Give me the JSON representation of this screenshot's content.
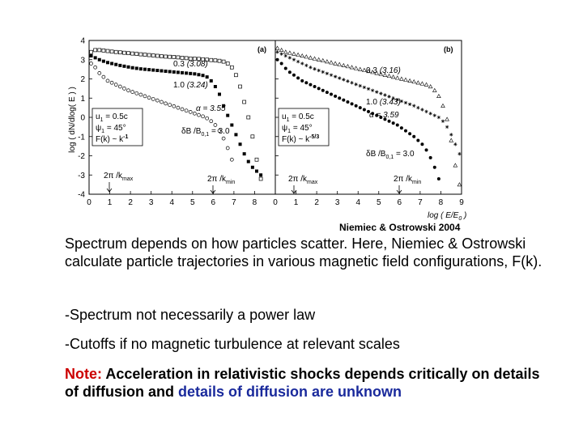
{
  "chart_data": {
    "type": "scatter",
    "ylabel": "log ( dN/dlog( E ) )",
    "xlabel": "log ( E/E",
    "xlabel_sub": "0",
    "xlabel_close": " )",
    "panels": [
      {
        "label": "(a)",
        "xlim": [
          0,
          9
        ],
        "ylim": [
          -4,
          4
        ],
        "xticks": [
          "0",
          "1",
          "2",
          "3",
          "4",
          "5",
          "6",
          "7",
          "8"
        ],
        "yticks": [
          "4",
          "3",
          "2",
          "1",
          "0",
          "-1",
          "-2",
          "-3",
          "-4"
        ],
        "params": {
          "u1": "u",
          "u1_sub": "1",
          "u1_val": " = 0.5c",
          "psi1": "ψ",
          "psi1_sub": "1",
          "psi1_val": " = 45°",
          "fk": "F(k) ~ k",
          "fk_exp": "-1"
        },
        "db": "δB /B",
        "db_sub": "0,1",
        "db_val": " = 3.0",
        "kmax": "2π /k",
        "kmax_sub": "max",
        "kmin": "2π /k",
        "kmin_sub": "min",
        "series": [
          {
            "marker": "open-square",
            "annotation": "0.3",
            "annotation_index": "(3.08)",
            "x": [
              0.1,
              0.3,
              0.5,
              0.7,
              0.9,
              1.1,
              1.3,
              1.5,
              1.7,
              1.9,
              2.1,
              2.3,
              2.5,
              2.7,
              2.9,
              3.1,
              3.3,
              3.5,
              3.7,
              3.9,
              4.1,
              4.3,
              4.5,
              4.7,
              4.9,
              5.1,
              5.3,
              5.5,
              5.7,
              5.9,
              6.1,
              6.3,
              6.5,
              6.7,
              6.9,
              7.1,
              7.3,
              7.5,
              7.7,
              7.9,
              8.1,
              8.3
            ],
            "y": [
              3.4,
              3.5,
              3.5,
              3.48,
              3.45,
              3.42,
              3.4,
              3.38,
              3.36,
              3.34,
              3.32,
              3.3,
              3.28,
              3.26,
              3.24,
              3.22,
              3.2,
              3.18,
              3.16,
              3.15,
              3.14,
              3.12,
              3.1,
              3.08,
              3.06,
              3.05,
              3.04,
              3.02,
              3.0,
              2.98,
              2.96,
              2.94,
              2.9,
              2.8,
              2.6,
              2.2,
              1.6,
              0.8,
              0.0,
              -1.0,
              -2.2,
              -3.2
            ]
          },
          {
            "marker": "filled-square",
            "annotation": "1.0",
            "annotation_index": "(3.24)",
            "x": [
              0.1,
              0.3,
              0.5,
              0.7,
              0.9,
              1.1,
              1.3,
              1.5,
              1.7,
              1.9,
              2.1,
              2.3,
              2.5,
              2.7,
              2.9,
              3.1,
              3.3,
              3.5,
              3.7,
              3.9,
              4.1,
              4.3,
              4.5,
              4.7,
              4.9,
              5.1,
              5.3,
              5.5,
              5.7,
              5.9,
              6.1,
              6.3,
              6.5,
              6.7,
              6.9,
              7.1,
              7.3,
              7.5,
              7.7,
              7.9,
              8.1,
              8.3
            ],
            "y": [
              3.2,
              3.1,
              3.0,
              2.92,
              2.85,
              2.8,
              2.75,
              2.7,
              2.66,
              2.62,
              2.58,
              2.55,
              2.52,
              2.5,
              2.48,
              2.46,
              2.44,
              2.42,
              2.4,
              2.38,
              2.36,
              2.34,
              2.32,
              2.3,
              2.28,
              2.26,
              2.22,
              2.18,
              2.1,
              1.9,
              1.6,
              1.2,
              0.6,
              0.1,
              -0.4,
              -0.9,
              -1.4,
              -1.9,
              -2.3,
              -2.6,
              -2.8,
              -3.0
            ]
          },
          {
            "marker": "open-circle",
            "annotation": "α = 3.55",
            "x": [
              0.1,
              0.3,
              0.5,
              0.7,
              0.9,
              1.1,
              1.3,
              1.5,
              1.7,
              1.9,
              2.1,
              2.3,
              2.5,
              2.7,
              2.9,
              3.1,
              3.3,
              3.5,
              3.7,
              3.9,
              4.1,
              4.3,
              4.5,
              4.7,
              4.9,
              5.1,
              5.3,
              5.5,
              5.7,
              5.9,
              6.1,
              6.3,
              6.5,
              6.7,
              6.9
            ],
            "y": [
              2.8,
              2.6,
              2.3,
              2.1,
              1.9,
              1.8,
              1.7,
              1.6,
              1.5,
              1.4,
              1.32,
              1.25,
              1.18,
              1.1,
              1.02,
              0.95,
              0.88,
              0.8,
              0.72,
              0.65,
              0.58,
              0.5,
              0.42,
              0.35,
              0.28,
              0.2,
              0.12,
              0.05,
              -0.05,
              -0.2,
              -0.4,
              -0.7,
              -1.1,
              -1.6,
              -2.2
            ]
          }
        ]
      },
      {
        "label": "(b)",
        "xlim": [
          0,
          9
        ],
        "ylim": [
          -4,
          4
        ],
        "xticks": [
          "0",
          "1",
          "2",
          "3",
          "4",
          "5",
          "6",
          "7",
          "8",
          "9"
        ],
        "params": {
          "u1": "u",
          "u1_sub": "1",
          "u1_val": " = 0.5c",
          "psi1": "ψ",
          "psi1_sub": "1",
          "psi1_val": " = 45°",
          "fk": "F(k) ~ k",
          "fk_exp": "-5/3"
        },
        "db": "δB /B",
        "db_sub": "0,1",
        "db_val": " = 3.0",
        "kmax": "2π /k",
        "kmax_sub": "max",
        "kmin": "2π /k",
        "kmin_sub": "min",
        "series": [
          {
            "marker": "open-triangle",
            "annotation": "0.3",
            "annotation_index": "(3.16)",
            "x": [
              0.1,
              0.3,
              0.5,
              0.7,
              0.9,
              1.1,
              1.3,
              1.5,
              1.7,
              1.9,
              2.1,
              2.3,
              2.5,
              2.7,
              2.9,
              3.1,
              3.3,
              3.5,
              3.7,
              3.9,
              4.1,
              4.3,
              4.5,
              4.7,
              4.9,
              5.1,
              5.3,
              5.5,
              5.7,
              5.9,
              6.1,
              6.3,
              6.5,
              6.7,
              6.9,
              7.1,
              7.3,
              7.5,
              7.7,
              7.9,
              8.1,
              8.3,
              8.5,
              8.7,
              8.9
            ],
            "y": [
              3.6,
              3.5,
              3.4,
              3.35,
              3.3,
              3.25,
              3.2,
              3.15,
              3.1,
              3.05,
              3.0,
              2.95,
              2.9,
              2.85,
              2.8,
              2.75,
              2.7,
              2.65,
              2.6,
              2.55,
              2.5,
              2.45,
              2.4,
              2.35,
              2.3,
              2.25,
              2.2,
              2.15,
              2.1,
              2.05,
              2.0,
              1.95,
              1.9,
              1.85,
              1.8,
              1.75,
              1.7,
              1.6,
              1.4,
              1.1,
              0.6,
              -0.1,
              -1.2,
              -2.5,
              -3.5
            ]
          },
          {
            "marker": "star",
            "annotation": "1.0",
            "annotation_index": "(3.43)",
            "x": [
              0.1,
              0.3,
              0.5,
              0.7,
              0.9,
              1.1,
              1.3,
              1.5,
              1.7,
              1.9,
              2.1,
              2.3,
              2.5,
              2.7,
              2.9,
              3.1,
              3.3,
              3.5,
              3.7,
              3.9,
              4.1,
              4.3,
              4.5,
              4.7,
              4.9,
              5.1,
              5.3,
              5.5,
              5.7,
              5.9,
              6.1,
              6.3,
              6.5,
              6.7,
              6.9,
              7.1,
              7.3,
              7.5,
              7.7,
              7.9,
              8.1,
              8.3,
              8.5,
              8.7,
              8.9
            ],
            "y": [
              3.4,
              3.3,
              3.2,
              3.1,
              3.0,
              2.9,
              2.8,
              2.7,
              2.6,
              2.52,
              2.44,
              2.36,
              2.28,
              2.2,
              2.12,
              2.04,
              1.96,
              1.88,
              1.8,
              1.72,
              1.64,
              1.56,
              1.48,
              1.4,
              1.32,
              1.24,
              1.16,
              1.08,
              1.0,
              0.92,
              0.84,
              0.76,
              0.68,
              0.6,
              0.5,
              0.4,
              0.3,
              0.2,
              0.1,
              0.0,
              -0.2,
              -0.5,
              -0.9,
              -1.4,
              -1.9
            ]
          },
          {
            "marker": "filled-circle",
            "annotation": "α = 3.59",
            "x": [
              0.1,
              0.3,
              0.5,
              0.7,
              0.9,
              1.1,
              1.3,
              1.5,
              1.7,
              1.9,
              2.1,
              2.3,
              2.5,
              2.7,
              2.9,
              3.1,
              3.3,
              3.5,
              3.7,
              3.9,
              4.1,
              4.3,
              4.5,
              4.7,
              4.9,
              5.1,
              5.3,
              5.5,
              5.7,
              5.9,
              6.1,
              6.3,
              6.5,
              6.7,
              6.9,
              7.1,
              7.3,
              7.5,
              7.7,
              7.9
            ],
            "y": [
              3.0,
              2.8,
              2.55,
              2.35,
              2.2,
              2.05,
              1.9,
              1.8,
              1.7,
              1.6,
              1.5,
              1.4,
              1.3,
              1.2,
              1.1,
              1.0,
              0.9,
              0.8,
              0.7,
              0.6,
              0.5,
              0.4,
              0.3,
              0.2,
              0.1,
              0.0,
              -0.1,
              -0.2,
              -0.3,
              -0.4,
              -0.55,
              -0.7,
              -0.85,
              -1.0,
              -1.2,
              -1.4,
              -1.7,
              -2.1,
              -2.6,
              -3.2
            ]
          }
        ]
      }
    ]
  },
  "credit": "Niemiec & Ostrowski 2004",
  "text": {
    "para1": "Spectrum depends on how particles scatter. Here, Niemiec & Ostrowski calculate particle trajectories in various magnetic field configurations, F(k).",
    "para2": "-Spectrum not necessarily a power law",
    "para3": "-Cutoffs if no magnetic turbulence at relevant scales",
    "note_label": "Note:",
    "note_body": " Acceleration in relativistic shocks depends critically on details of diffusion and ",
    "note_highlight": "details of diffusion are unknown"
  },
  "colors": {
    "note_label": "#cc0000",
    "note_highlight": "#1a2a9c"
  }
}
